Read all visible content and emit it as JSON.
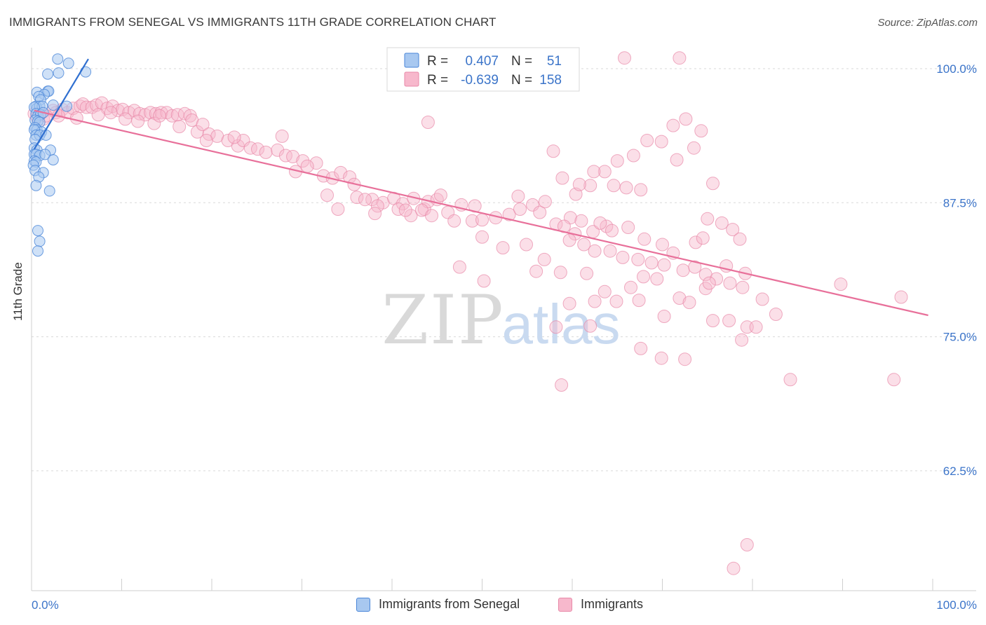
{
  "title": "IMMIGRANTS FROM SENEGAL VS IMMIGRANTS 11TH GRADE CORRELATION CHART",
  "source": "Source: ZipAtlas.com",
  "watermark": {
    "zip": "ZIP",
    "atlas": "atlas"
  },
  "colors": {
    "blue_fill": "#a8c8f0",
    "blue_stroke": "#4a86d8",
    "blue_line": "#2f6fd0",
    "pink_fill": "#f7b8cc",
    "pink_stroke": "#e889a8",
    "pink_line": "#e8709a",
    "axis_text": "#3b74c9",
    "grid": "#d9d9d9"
  },
  "legend": {
    "r_label": "R =",
    "n_label": "N =",
    "rows": [
      {
        "series": "blue",
        "r": "0.407",
        "n": "51"
      },
      {
        "series": "pink",
        "r": "-0.639",
        "n": "158"
      }
    ]
  },
  "bottom_legend": [
    {
      "series": "blue",
      "label": "Immigrants from Senegal"
    },
    {
      "series": "pink",
      "label": "Immigrants"
    }
  ],
  "chart_data": {
    "type": "scatter",
    "ylabel": "11th Grade",
    "xlabel": "",
    "xlim": [
      0,
      100
    ],
    "ylim": [
      52,
      102
    ],
    "x_tick_labels": {
      "left": "0.0%",
      "right": "100.0%"
    },
    "y_ticks": [
      {
        "value": 100,
        "label": "100.0%"
      },
      {
        "value": 87.5,
        "label": "87.5%"
      },
      {
        "value": 75,
        "label": "75.0%"
      },
      {
        "value": 62.5,
        "label": "62.5%"
      }
    ],
    "series": [
      {
        "name": "Immigrants from Senegal",
        "color": "blue",
        "trend": {
          "x0": 0.3,
          "y0": 92.5,
          "x1": 6.3,
          "y1": 100.9
        },
        "points": [
          [
            2.9,
            100.9
          ],
          [
            4.1,
            100.5
          ],
          [
            1.8,
            99.5
          ],
          [
            3.0,
            99.6
          ],
          [
            6.0,
            99.7
          ],
          [
            1.8,
            97.9
          ],
          [
            1.9,
            97.9
          ],
          [
            0.6,
            97.8
          ],
          [
            1.4,
            97.6
          ],
          [
            0.8,
            97.4
          ],
          [
            1.0,
            97.1
          ],
          [
            0.5,
            96.5
          ],
          [
            0.6,
            96.3
          ],
          [
            0.9,
            96.5
          ],
          [
            1.2,
            96.5
          ],
          [
            2.4,
            96.6
          ],
          [
            3.9,
            96.5
          ],
          [
            0.3,
            96.4
          ],
          [
            0.5,
            95.8
          ],
          [
            0.7,
            95.6
          ],
          [
            1.0,
            95.7
          ],
          [
            1.3,
            95.9
          ],
          [
            0.4,
            95.2
          ],
          [
            0.7,
            95.1
          ],
          [
            0.9,
            95.0
          ],
          [
            0.4,
            94.5
          ],
          [
            0.6,
            94.3
          ],
          [
            1.1,
            94.1
          ],
          [
            0.3,
            94.3
          ],
          [
            0.5,
            93.8
          ],
          [
            0.9,
            93.8
          ],
          [
            1.6,
            93.8
          ],
          [
            0.4,
            93.4
          ],
          [
            0.3,
            92.6
          ],
          [
            0.6,
            92.4
          ],
          [
            2.1,
            92.4
          ],
          [
            0.3,
            92.0
          ],
          [
            0.5,
            92.0
          ],
          [
            0.9,
            91.9
          ],
          [
            1.5,
            92.0
          ],
          [
            0.3,
            91.4
          ],
          [
            0.5,
            91.3
          ],
          [
            2.4,
            91.5
          ],
          [
            0.2,
            91.0
          ],
          [
            0.4,
            90.5
          ],
          [
            1.3,
            90.3
          ],
          [
            0.8,
            89.9
          ],
          [
            0.5,
            89.1
          ],
          [
            2.0,
            88.6
          ],
          [
            0.7,
            84.9
          ],
          [
            0.9,
            83.9
          ],
          [
            0.7,
            83.0
          ]
        ]
      },
      {
        "name": "Immigrants",
        "color": "pink",
        "trend": {
          "x0": 0.3,
          "y0": 96.1,
          "x1": 99.5,
          "y1": 77.0
        },
        "points": [
          [
            65.8,
            101.0
          ],
          [
            71.9,
            101.0
          ],
          [
            0.3,
            95.8
          ],
          [
            1.0,
            95.8
          ],
          [
            1.3,
            95.3
          ],
          [
            2.4,
            96.1
          ],
          [
            2.7,
            95.9
          ],
          [
            3.4,
            96.2
          ],
          [
            4.0,
            95.9
          ],
          [
            4.6,
            96.3
          ],
          [
            5.4,
            96.5
          ],
          [
            5.7,
            96.7
          ],
          [
            6.1,
            96.4
          ],
          [
            6.7,
            96.4
          ],
          [
            7.2,
            96.6
          ],
          [
            7.8,
            96.8
          ],
          [
            8.4,
            96.3
          ],
          [
            9.0,
            96.5
          ],
          [
            9.6,
            96.1
          ],
          [
            10.1,
            96.2
          ],
          [
            10.8,
            95.9
          ],
          [
            11.4,
            96.1
          ],
          [
            12.0,
            95.8
          ],
          [
            12.6,
            95.7
          ],
          [
            13.2,
            95.9
          ],
          [
            13.8,
            95.8
          ],
          [
            14.4,
            95.9
          ],
          [
            15.0,
            95.9
          ],
          [
            15.6,
            95.6
          ],
          [
            16.2,
            95.7
          ],
          [
            17.0,
            95.8
          ],
          [
            17.6,
            95.6
          ],
          [
            0.6,
            95.5
          ],
          [
            1.6,
            95.6
          ],
          [
            3.0,
            95.6
          ],
          [
            5.0,
            95.4
          ],
          [
            7.4,
            95.7
          ],
          [
            8.8,
            95.9
          ],
          [
            10.4,
            95.3
          ],
          [
            11.8,
            95.1
          ],
          [
            13.6,
            94.9
          ],
          [
            14.2,
            95.6
          ],
          [
            16.4,
            94.6
          ],
          [
            17.8,
            95.2
          ],
          [
            18.4,
            94.1
          ],
          [
            19.0,
            94.8
          ],
          [
            19.7,
            93.9
          ],
          [
            20.6,
            93.7
          ],
          [
            21.8,
            93.3
          ],
          [
            22.9,
            92.8
          ],
          [
            23.5,
            93.3
          ],
          [
            24.3,
            92.6
          ],
          [
            25.1,
            92.5
          ],
          [
            26.0,
            92.2
          ],
          [
            27.3,
            92.4
          ],
          [
            28.2,
            91.9
          ],
          [
            29.0,
            91.8
          ],
          [
            30.1,
            91.4
          ],
          [
            31.6,
            91.2
          ],
          [
            27.8,
            93.7
          ],
          [
            19.4,
            93.3
          ],
          [
            22.5,
            93.6
          ],
          [
            29.3,
            90.4
          ],
          [
            30.6,
            90.9
          ],
          [
            32.4,
            90.0
          ],
          [
            33.4,
            89.8
          ],
          [
            34.3,
            90.3
          ],
          [
            35.3,
            89.9
          ],
          [
            35.8,
            89.2
          ],
          [
            32.8,
            88.2
          ],
          [
            36.1,
            88.0
          ],
          [
            37.8,
            87.8
          ],
          [
            39.0,
            87.5
          ],
          [
            40.2,
            87.9
          ],
          [
            41.2,
            87.4
          ],
          [
            42.4,
            87.9
          ],
          [
            43.6,
            86.9
          ],
          [
            44.0,
            87.6
          ],
          [
            45.0,
            87.8
          ],
          [
            46.2,
            86.6
          ],
          [
            37.0,
            87.8
          ],
          [
            38.4,
            87.2
          ],
          [
            40.7,
            86.9
          ],
          [
            42.1,
            86.3
          ],
          [
            43.3,
            86.8
          ],
          [
            44.4,
            86.3
          ],
          [
            46.9,
            85.8
          ],
          [
            48.9,
            85.8
          ],
          [
            50.0,
            85.9
          ],
          [
            51.5,
            86.1
          ],
          [
            53.0,
            86.4
          ],
          [
            54.2,
            86.9
          ],
          [
            55.6,
            87.3
          ],
          [
            56.4,
            86.6
          ],
          [
            58.2,
            85.5
          ],
          [
            59.8,
            86.1
          ],
          [
            61.0,
            85.8
          ],
          [
            62.3,
            84.8
          ],
          [
            63.8,
            85.3
          ],
          [
            64.4,
            84.9
          ],
          [
            45.4,
            88.2
          ],
          [
            47.7,
            87.3
          ],
          [
            34.0,
            86.9
          ],
          [
            38.1,
            86.5
          ],
          [
            41.5,
            86.8
          ],
          [
            54.0,
            88.1
          ],
          [
            57.0,
            87.6
          ],
          [
            59.1,
            85.3
          ],
          [
            60.3,
            84.6
          ],
          [
            63.1,
            85.6
          ],
          [
            66.2,
            85.2
          ],
          [
            68.0,
            84.1
          ],
          [
            70.0,
            83.6
          ],
          [
            71.2,
            82.8
          ],
          [
            73.7,
            83.8
          ],
          [
            74.5,
            84.2
          ],
          [
            75.0,
            86.0
          ],
          [
            76.6,
            85.6
          ],
          [
            77.8,
            85.0
          ],
          [
            78.6,
            84.1
          ],
          [
            59.7,
            84.0
          ],
          [
            61.3,
            83.6
          ],
          [
            62.5,
            83.0
          ],
          [
            64.2,
            83.0
          ],
          [
            65.6,
            82.4
          ],
          [
            67.3,
            82.2
          ],
          [
            68.8,
            81.9
          ],
          [
            70.2,
            81.7
          ],
          [
            72.3,
            81.2
          ],
          [
            73.6,
            81.5
          ],
          [
            74.8,
            80.8
          ],
          [
            76.0,
            80.4
          ],
          [
            77.5,
            80.0
          ],
          [
            78.9,
            79.6
          ],
          [
            60.4,
            88.3
          ],
          [
            62.0,
            89.1
          ],
          [
            63.6,
            90.4
          ],
          [
            65.0,
            91.4
          ],
          [
            66.8,
            91.9
          ],
          [
            68.3,
            93.3
          ],
          [
            69.9,
            93.2
          ],
          [
            71.2,
            94.7
          ],
          [
            72.6,
            95.3
          ],
          [
            74.3,
            94.2
          ],
          [
            73.5,
            92.6
          ],
          [
            71.6,
            91.5
          ],
          [
            75.6,
            89.3
          ],
          [
            57.9,
            92.3
          ],
          [
            58.9,
            89.8
          ],
          [
            60.8,
            89.2
          ],
          [
            62.4,
            90.4
          ],
          [
            64.6,
            89.1
          ],
          [
            66.0,
            88.9
          ],
          [
            67.6,
            88.7
          ],
          [
            44.0,
            95.0
          ],
          [
            49.2,
            87.2
          ],
          [
            50.0,
            84.3
          ],
          [
            52.3,
            83.3
          ],
          [
            54.9,
            83.6
          ],
          [
            56.9,
            82.2
          ],
          [
            58.7,
            81.0
          ],
          [
            61.6,
            80.9
          ],
          [
            63.6,
            79.2
          ],
          [
            66.5,
            79.6
          ],
          [
            67.9,
            80.6
          ],
          [
            69.4,
            80.4
          ],
          [
            71.9,
            78.6
          ],
          [
            74.8,
            79.5
          ],
          [
            77.4,
            76.5
          ],
          [
            79.4,
            75.9
          ],
          [
            78.8,
            74.7
          ],
          [
            58.2,
            75.9
          ],
          [
            62.0,
            76.0
          ],
          [
            67.6,
            73.9
          ],
          [
            69.9,
            73.0
          ],
          [
            72.5,
            72.9
          ],
          [
            75.6,
            76.5
          ],
          [
            80.4,
            75.9
          ],
          [
            84.2,
            71.0
          ],
          [
            89.8,
            79.9
          ],
          [
            96.5,
            78.7
          ],
          [
            95.7,
            71.0
          ],
          [
            47.5,
            81.5
          ],
          [
            50.2,
            80.2
          ],
          [
            56.0,
            81.1
          ],
          [
            59.7,
            78.1
          ],
          [
            62.5,
            78.3
          ],
          [
            64.9,
            78.3
          ],
          [
            67.4,
            78.4
          ],
          [
            70.2,
            76.9
          ],
          [
            73.0,
            78.2
          ],
          [
            75.2,
            80.0
          ],
          [
            77.1,
            81.6
          ],
          [
            79.2,
            80.9
          ],
          [
            81.1,
            78.5
          ],
          [
            82.6,
            77.1
          ],
          [
            58.8,
            70.5
          ],
          [
            79.4,
            55.6
          ],
          [
            77.9,
            53.4
          ]
        ]
      }
    ]
  }
}
